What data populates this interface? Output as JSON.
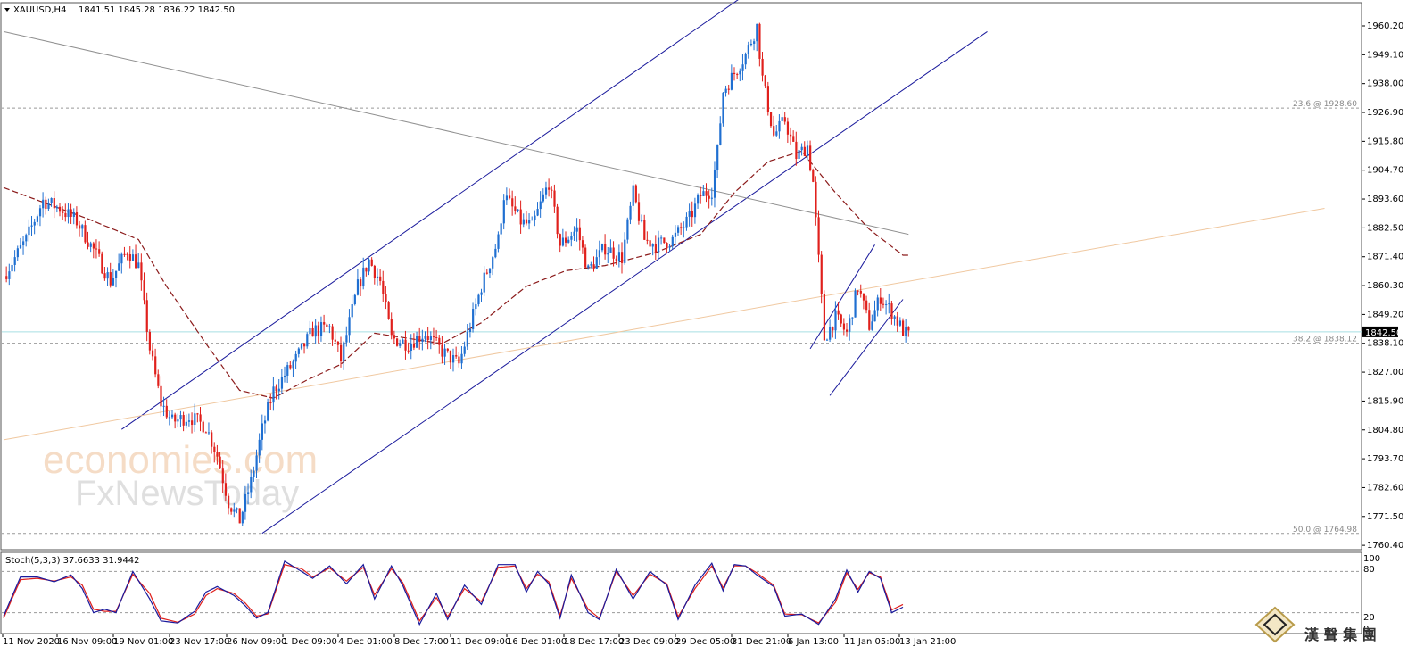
{
  "header": {
    "symbol": "XAUUSD,H4",
    "ohlc": "1841.51 1845.28 1836.22 1842.50"
  },
  "indicator": {
    "label": "Stoch(5,3,3) 37.6633 31.9442",
    "levels": [
      "100",
      "80",
      "20",
      "0"
    ]
  },
  "watermark": {
    "line1": "economies.com",
    "line2": "FxNewsToday"
  },
  "brand": {
    "text": "漢 聲 集 團"
  },
  "colors": {
    "bull": "#1f6fd1",
    "bear": "#e0201c",
    "channel": "#1a1a9c",
    "ma": "#8b1a1a",
    "trend_gray": "#909090",
    "trend_tan": "#f0c8a0",
    "fib": "#999999",
    "price_line": "#a6dfe3",
    "stoch_k": "#1a1a9c",
    "stoch_d": "#e0201c"
  },
  "chart_data": {
    "type": "candlestick",
    "title": "XAUUSD,H4",
    "ylim": [
      1757,
      1970
    ],
    "y_ticks": [
      "1960.20",
      "1949.10",
      "1938.00",
      "1926.90",
      "1915.80",
      "1904.70",
      "1893.60",
      "1882.50",
      "1871.40",
      "1860.30",
      "1849.20",
      "1838.10",
      "1827.00",
      "1815.90",
      "1804.80",
      "1793.70",
      "1782.60",
      "1771.50",
      "1760.40"
    ],
    "x_labels": [
      "11 Nov 2020",
      "16 Nov 09:00",
      "19 Nov 01:00",
      "23 Nov 17:00",
      "26 Nov 09:00",
      "1 Dec 09:00",
      "4 Dec 01:00",
      "8 Dec 17:00",
      "11 Dec 09:00",
      "16 Dec 01:00",
      "18 Dec 17:00",
      "23 Dec 09:00",
      "29 Dec 05:00",
      "31 Dec 21:00",
      "6 Jan 13:00",
      "11 Jan 05:00",
      "13 Jan 21:00"
    ],
    "current_price": "1842.50",
    "fib_levels": [
      {
        "label": "23.6 @ 1928.60",
        "value": 1928.6
      },
      {
        "label": "38.2 @ 1838.12",
        "value": 1838.12
      },
      {
        "label": "50.0 @ 1764.98",
        "value": 1764.98
      }
    ],
    "price_keypoints": [
      [
        0,
        1864
      ],
      [
        8,
        1878
      ],
      [
        14,
        1893
      ],
      [
        20,
        1890
      ],
      [
        26,
        1885
      ],
      [
        32,
        1874
      ],
      [
        38,
        1862
      ],
      [
        44,
        1874
      ],
      [
        48,
        1868
      ],
      [
        52,
        1836
      ],
      [
        56,
        1815
      ],
      [
        60,
        1808
      ],
      [
        66,
        1810
      ],
      [
        72,
        1806
      ],
      [
        76,
        1795
      ],
      [
        80,
        1777
      ],
      [
        84,
        1770
      ],
      [
        88,
        1785
      ],
      [
        92,
        1805
      ],
      [
        96,
        1820
      ],
      [
        104,
        1832
      ],
      [
        110,
        1843
      ],
      [
        116,
        1844
      ],
      [
        120,
        1832
      ],
      [
        126,
        1860
      ],
      [
        130,
        1870
      ],
      [
        134,
        1862
      ],
      [
        138,
        1840
      ],
      [
        144,
        1838
      ],
      [
        150,
        1842
      ],
      [
        156,
        1835
      ],
      [
        162,
        1830
      ],
      [
        166,
        1845
      ],
      [
        170,
        1860
      ],
      [
        176,
        1878
      ],
      [
        178,
        1895
      ],
      [
        184,
        1885
      ],
      [
        188,
        1883
      ],
      [
        194,
        1900
      ],
      [
        198,
        1876
      ],
      [
        204,
        1882
      ],
      [
        208,
        1866
      ],
      [
        214,
        1875
      ],
      [
        220,
        1871
      ],
      [
        224,
        1896
      ],
      [
        228,
        1878
      ],
      [
        232,
        1876
      ],
      [
        238,
        1878
      ],
      [
        244,
        1886
      ],
      [
        248,
        1895
      ],
      [
        252,
        1897
      ],
      [
        254,
        1912
      ],
      [
        256,
        1935
      ],
      [
        260,
        1942
      ],
      [
        264,
        1949
      ],
      [
        268,
        1960
      ],
      [
        270,
        1940
      ],
      [
        274,
        1918
      ],
      [
        278,
        1924
      ],
      [
        282,
        1910
      ],
      [
        286,
        1914
      ],
      [
        288,
        1900
      ],
      [
        290,
        1870
      ],
      [
        292,
        1840
      ],
      [
        296,
        1848
      ],
      [
        300,
        1842
      ],
      [
        304,
        1860
      ],
      [
        308,
        1845
      ],
      [
        312,
        1856
      ],
      [
        316,
        1850
      ],
      [
        320,
        1843
      ],
      [
        322,
        1841
      ]
    ],
    "ma_keypoints": [
      [
        0,
        1898
      ],
      [
        30,
        1886
      ],
      [
        48,
        1878
      ],
      [
        58,
        1860
      ],
      [
        72,
        1838
      ],
      [
        84,
        1820
      ],
      [
        96,
        1817
      ],
      [
        108,
        1824
      ],
      [
        120,
        1830
      ],
      [
        132,
        1842
      ],
      [
        144,
        1840
      ],
      [
        156,
        1838
      ],
      [
        170,
        1846
      ],
      [
        186,
        1860
      ],
      [
        200,
        1866
      ],
      [
        214,
        1868
      ],
      [
        232,
        1873
      ],
      [
        248,
        1880
      ],
      [
        260,
        1896
      ],
      [
        272,
        1908
      ],
      [
        284,
        1912
      ],
      [
        296,
        1896
      ],
      [
        308,
        1882
      ],
      [
        320,
        1872
      ]
    ],
    "trendlines": [
      {
        "name": "channel-upper",
        "from": [
          42,
          1805
        ],
        "to": [
          265,
          1973
        ]
      },
      {
        "name": "channel-lower",
        "from": [
          92,
          1765
        ],
        "to": [
          350,
          1958
        ]
      },
      {
        "name": "descending-gray",
        "from": [
          0,
          1958
        ],
        "to": [
          322,
          1880
        ]
      },
      {
        "name": "ascending-tan",
        "from": [
          0,
          1801
        ],
        "to": [
          470,
          1890
        ]
      },
      {
        "name": "flag-left",
        "from": [
          287,
          1836
        ],
        "to": [
          310,
          1876
        ]
      },
      {
        "name": "flag-right",
        "from": [
          294,
          1818
        ],
        "to": [
          320,
          1855
        ]
      }
    ],
    "stochastic": {
      "name": "Stoch(5,3,3)",
      "ylim": [
        0,
        100
      ],
      "levels": [
        80,
        20
      ],
      "k_keypoints": [
        [
          0,
          15
        ],
        [
          6,
          72
        ],
        [
          12,
          72
        ],
        [
          18,
          65
        ],
        [
          24,
          75
        ],
        [
          28,
          55
        ],
        [
          32,
          20
        ],
        [
          36,
          25
        ],
        [
          40,
          20
        ],
        [
          46,
          80
        ],
        [
          52,
          40
        ],
        [
          56,
          8
        ],
        [
          62,
          5
        ],
        [
          68,
          22
        ],
        [
          72,
          50
        ],
        [
          76,
          58
        ],
        [
          82,
          45
        ],
        [
          86,
          30
        ],
        [
          90,
          12
        ],
        [
          94,
          20
        ],
        [
          100,
          95
        ],
        [
          106,
          80
        ],
        [
          110,
          70
        ],
        [
          116,
          88
        ],
        [
          122,
          62
        ],
        [
          128,
          90
        ],
        [
          132,
          40
        ],
        [
          138,
          88
        ],
        [
          142,
          60
        ],
        [
          148,
          3
        ],
        [
          154,
          48
        ],
        [
          158,
          10
        ],
        [
          164,
          60
        ],
        [
          170,
          32
        ],
        [
          176,
          90
        ],
        [
          182,
          90
        ],
        [
          186,
          50
        ],
        [
          190,
          80
        ],
        [
          194,
          62
        ],
        [
          198,
          12
        ],
        [
          202,
          75
        ],
        [
          208,
          20
        ],
        [
          212,
          10
        ],
        [
          218,
          83
        ],
        [
          224,
          40
        ],
        [
          230,
          80
        ],
        [
          236,
          60
        ],
        [
          240,
          10
        ],
        [
          246,
          60
        ],
        [
          252,
          92
        ],
        [
          256,
          52
        ],
        [
          260,
          90
        ],
        [
          264,
          88
        ],
        [
          268,
          75
        ],
        [
          274,
          58
        ],
        [
          278,
          15
        ],
        [
          284,
          18
        ],
        [
          290,
          3
        ],
        [
          296,
          40
        ],
        [
          300,
          82
        ],
        [
          304,
          50
        ],
        [
          308,
          80
        ],
        [
          312,
          70
        ],
        [
          316,
          20
        ],
        [
          320,
          28
        ]
      ],
      "d_keypoints": [
        [
          0,
          12
        ],
        [
          6,
          68
        ],
        [
          12,
          70
        ],
        [
          18,
          66
        ],
        [
          24,
          72
        ],
        [
          28,
          60
        ],
        [
          32,
          25
        ],
        [
          36,
          22
        ],
        [
          40,
          22
        ],
        [
          46,
          76
        ],
        [
          52,
          48
        ],
        [
          56,
          12
        ],
        [
          62,
          6
        ],
        [
          68,
          18
        ],
        [
          72,
          45
        ],
        [
          76,
          55
        ],
        [
          82,
          48
        ],
        [
          86,
          34
        ],
        [
          90,
          15
        ],
        [
          94,
          18
        ],
        [
          100,
          90
        ],
        [
          106,
          84
        ],
        [
          110,
          72
        ],
        [
          116,
          85
        ],
        [
          122,
          66
        ],
        [
          128,
          86
        ],
        [
          132,
          46
        ],
        [
          138,
          84
        ],
        [
          142,
          64
        ],
        [
          148,
          8
        ],
        [
          154,
          42
        ],
        [
          158,
          14
        ],
        [
          164,
          55
        ],
        [
          170,
          36
        ],
        [
          176,
          86
        ],
        [
          182,
          88
        ],
        [
          186,
          55
        ],
        [
          190,
          76
        ],
        [
          194,
          65
        ],
        [
          198,
          16
        ],
        [
          202,
          70
        ],
        [
          208,
          25
        ],
        [
          212,
          12
        ],
        [
          218,
          80
        ],
        [
          224,
          45
        ],
        [
          230,
          76
        ],
        [
          236,
          62
        ],
        [
          240,
          14
        ],
        [
          246,
          55
        ],
        [
          252,
          88
        ],
        [
          256,
          56
        ],
        [
          260,
          88
        ],
        [
          264,
          88
        ],
        [
          268,
          78
        ],
        [
          274,
          60
        ],
        [
          278,
          18
        ],
        [
          284,
          17
        ],
        [
          290,
          5
        ],
        [
          296,
          35
        ],
        [
          300,
          78
        ],
        [
          304,
          54
        ],
        [
          308,
          78
        ],
        [
          312,
          72
        ],
        [
          316,
          24
        ],
        [
          320,
          32
        ]
      ]
    }
  }
}
